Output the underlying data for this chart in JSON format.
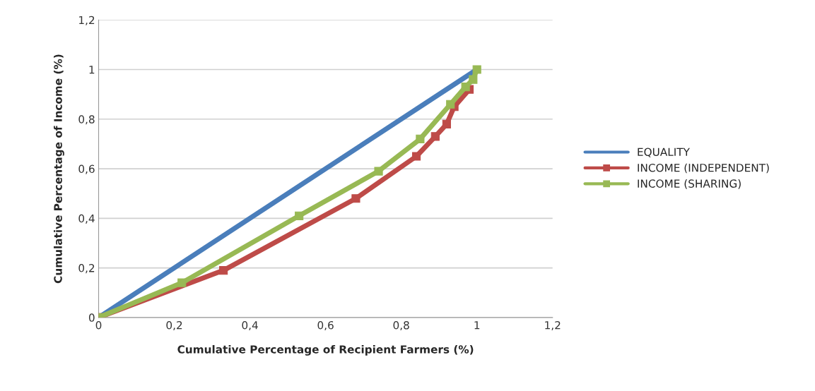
{
  "chart_data": {
    "type": "line",
    "xlabel": "Cumulative Percentage of Recipient Farmers (%)",
    "ylabel": "Cumulative Percentage of Income (%)",
    "series": [
      {
        "name": "EQUALITY",
        "color": "#4a7ebb",
        "marker": "none",
        "x": [
          0,
          1
        ],
        "values": [
          0,
          1
        ]
      },
      {
        "name": "INCOME (INDEPENDENT)",
        "color": "#be4b48",
        "marker": "square",
        "x": [
          0,
          0.33,
          0.68,
          0.84,
          0.89,
          0.92,
          0.94,
          0.98
        ],
        "values": [
          0,
          0.19,
          0.48,
          0.65,
          0.73,
          0.78,
          0.85,
          0.92
        ]
      },
      {
        "name": "INCOME (SHARING)",
        "color": "#98b954",
        "marker": "square",
        "x": [
          0,
          0.22,
          0.53,
          0.74,
          0.85,
          0.93,
          0.97,
          0.99,
          1
        ],
        "values": [
          0,
          0.14,
          0.41,
          0.59,
          0.72,
          0.86,
          0.93,
          0.96,
          1
        ]
      }
    ],
    "xlim": [
      0,
      1.2
    ],
    "ylim": [
      0,
      1.2
    ],
    "xticks": [
      0,
      {
        "value": 0.2,
        "label": "0,2"
      },
      {
        "value": 0.4,
        "label": "0,4"
      },
      {
        "value": 0.6,
        "label": "0,6"
      },
      {
        "value": 0.8,
        "label": "0,8"
      },
      1,
      {
        "value": 1.2,
        "label": "1,2"
      }
    ],
    "yticks": [
      0,
      {
        "value": 0.2,
        "label": "0,2"
      },
      {
        "value": 0.4,
        "label": "0,4"
      },
      {
        "value": 0.6,
        "label": "0,6"
      },
      {
        "value": 0.8,
        "label": "0,8"
      },
      1,
      {
        "value": 1.2,
        "label": "1,2"
      }
    ],
    "grid": "y",
    "legend": "right",
    "line_style": "solid"
  }
}
